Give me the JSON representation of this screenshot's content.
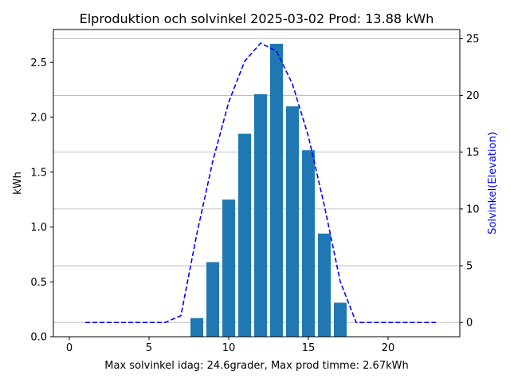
{
  "chart_data": {
    "type": "bar",
    "title": "Elproduktion och solvinkel 2025-03-02 Prod: 13.88 kWh",
    "xlabel": "Max solvinkel idag: 24.6grader, Max prod timme: 2.67kWh",
    "ylabel": "kWh",
    "ylabel_right": "Solvinkel(Elevation)",
    "xlim": [
      -1,
      24.5
    ],
    "ylim": [
      0,
      2.8
    ],
    "ylim_right": [
      -1.25,
      25.8
    ],
    "x_ticks": [
      0,
      5,
      10,
      15,
      20
    ],
    "y_ticks": [
      0.0,
      0.5,
      1.0,
      1.5,
      2.0,
      2.5
    ],
    "y_ticks_right": [
      0,
      5,
      10,
      15,
      20,
      25
    ],
    "grid": "horizontal lines at right-axis ticks",
    "bars": {
      "color": "#1f77b4",
      "x": [
        8,
        9,
        10,
        11,
        12,
        13,
        14,
        15,
        16,
        17
      ],
      "values": [
        0.17,
        0.68,
        1.25,
        1.85,
        2.21,
        2.67,
        2.1,
        1.7,
        0.94,
        0.31
      ]
    },
    "elevation": {
      "color": "#0000ff",
      "style": "dashed",
      "x": [
        1,
        2,
        3,
        4,
        5,
        6,
        7,
        8,
        9,
        10,
        11,
        12,
        13,
        14,
        15,
        16,
        17,
        18,
        19,
        20,
        21,
        22,
        23
      ],
      "values": [
        0,
        0,
        0,
        0,
        0,
        0,
        0.6,
        7.8,
        14.2,
        19.4,
        23.0,
        24.6,
        23.9,
        21.0,
        16.4,
        10.3,
        3.6,
        0,
        0,
        0,
        0,
        0,
        0
      ]
    }
  }
}
